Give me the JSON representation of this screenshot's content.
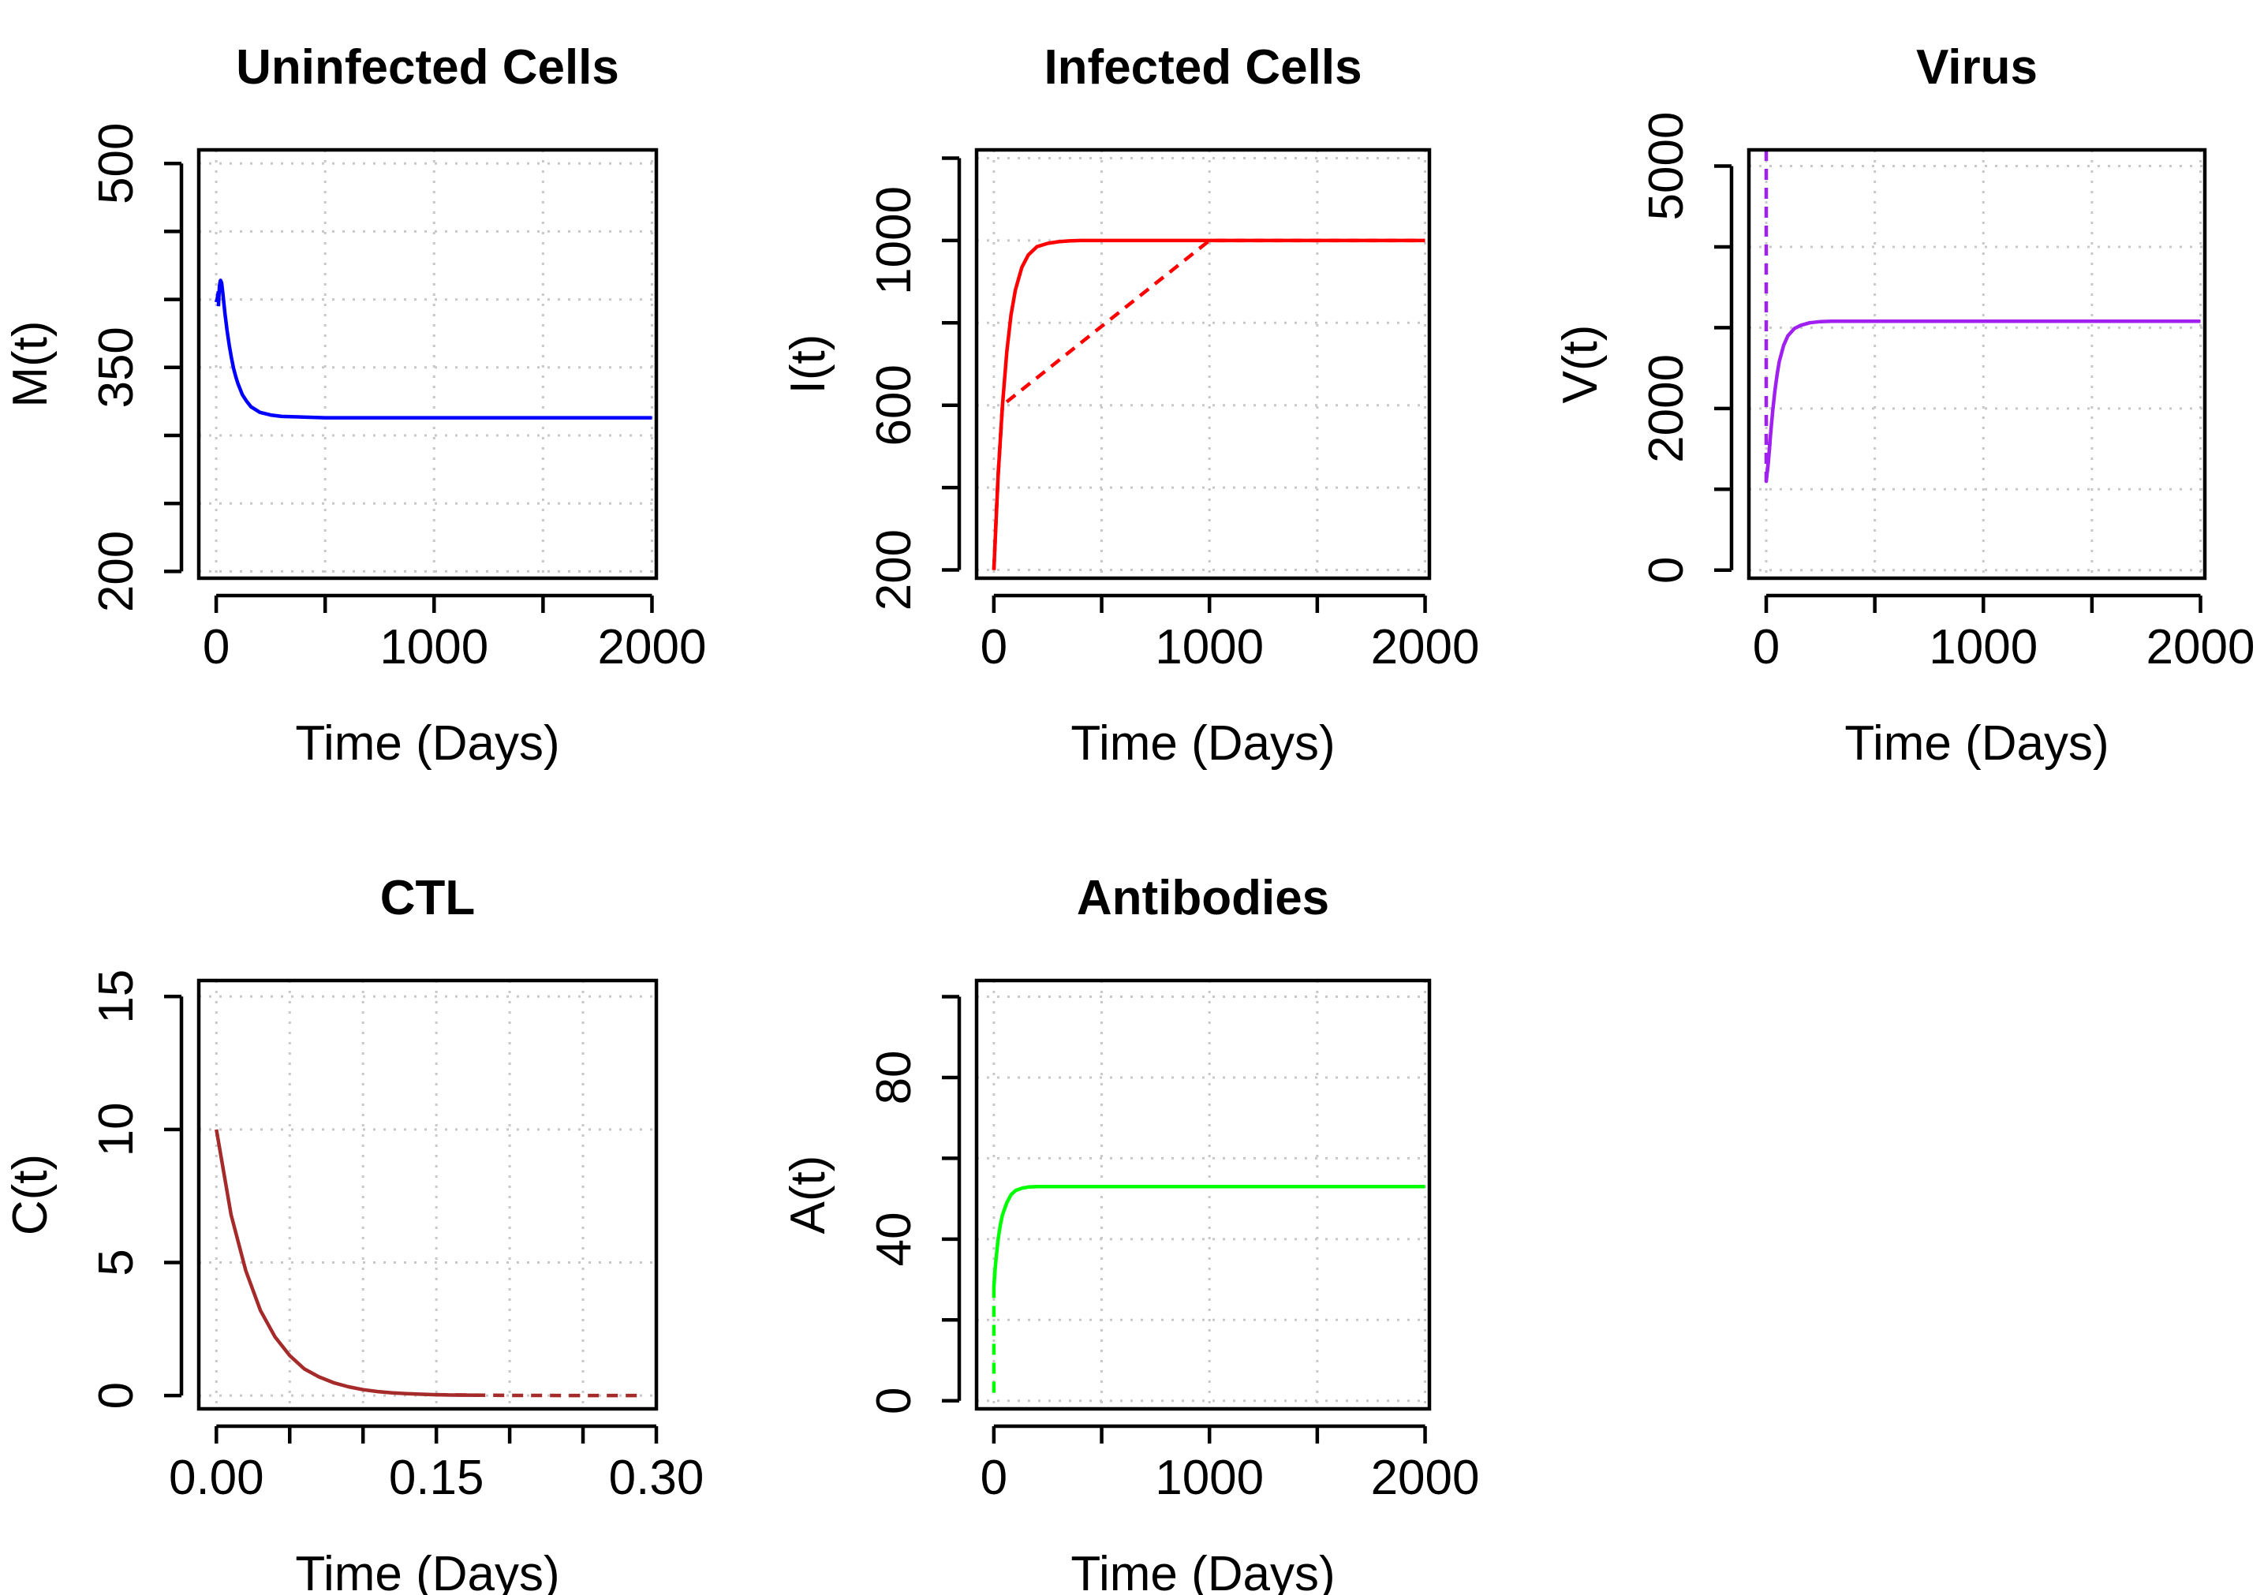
{
  "figure": {
    "layout": "2x3 grid of line plots"
  },
  "chart_data": [
    {
      "type": "line",
      "title": "Uninfected Cells",
      "xlabel": "Time (Days)",
      "ylabel": "M(t)",
      "xlim": [
        -80,
        2020
      ],
      "ylim": [
        195,
        510
      ],
      "xticks": [
        0,
        500,
        1000,
        1500,
        2000
      ],
      "xtick_labels": [
        "0",
        "",
        "1000",
        "",
        "2000"
      ],
      "yticks": [
        200,
        250,
        300,
        350,
        400,
        450,
        500
      ],
      "ytick_labels": [
        "200",
        "",
        "",
        "350",
        "",
        "",
        "500"
      ],
      "grid": true,
      "color": "#0000ff",
      "series": [
        {
          "name": "solid",
          "dash": "solid",
          "x": [
            10,
            15,
            20,
            25,
            30,
            40,
            50,
            60,
            70,
            80,
            90,
            100,
            120,
            140,
            160,
            180,
            200,
            250,
            300,
            400,
            500,
            700,
            1000,
            1500,
            2000
          ],
          "y": [
            395,
            410,
            414,
            412,
            405,
            390,
            377,
            366,
            357,
            349,
            343,
            338,
            330,
            325,
            321,
            319,
            317,
            315,
            314,
            313.5,
            313,
            313,
            313,
            313,
            313
          ]
        },
        {
          "name": "dashed",
          "dash": "dashed",
          "x": [
            0,
            5,
            10,
            15,
            20,
            25
          ],
          "y": [
            398,
            401,
            406,
            411,
            414,
            412
          ]
        }
      ]
    },
    {
      "type": "line",
      "title": "Infected Cells",
      "xlabel": "Time (Days)",
      "ylabel": "I(t)",
      "xlim": [
        -80,
        2020
      ],
      "ylim": [
        180,
        1220
      ],
      "xticks": [
        0,
        500,
        1000,
        1500,
        2000
      ],
      "xtick_labels": [
        "0",
        "",
        "1000",
        "",
        "2000"
      ],
      "yticks": [
        200,
        400,
        600,
        800,
        1000,
        1200
      ],
      "ytick_labels": [
        "200",
        "",
        "600",
        "",
        "1000",
        ""
      ],
      "grid": true,
      "color": "#ff0000",
      "series": [
        {
          "name": "solid",
          "dash": "solid",
          "x": [
            0,
            20,
            40,
            60,
            80,
            100,
            130,
            160,
            200,
            250,
            300,
            350,
            400,
            500,
            700,
            1000,
            1500,
            2000
          ],
          "y": [
            200,
            430,
            600,
            730,
            820,
            880,
            935,
            965,
            985,
            993,
            997,
            999,
            1000,
            1000,
            1000,
            1000,
            1000,
            1000
          ]
        },
        {
          "name": "dashed",
          "dash": "dashed",
          "x": [
            0,
            10,
            20,
            40,
            1000,
            1500,
            2000
          ],
          "y": [
            200,
            320,
            430,
            600,
            1000,
            1000,
            1000
          ]
        }
      ]
    },
    {
      "type": "line",
      "title": "Virus",
      "xlabel": "Time (Days)",
      "ylabel": "V(t)",
      "xlim": [
        -80,
        2020
      ],
      "ylim": [
        -100,
        5200
      ],
      "xticks": [
        0,
        500,
        1000,
        1500,
        2000
      ],
      "xtick_labels": [
        "0",
        "",
        "1000",
        "",
        "2000"
      ],
      "yticks": [
        0,
        1000,
        2000,
        3000,
        4000,
        5000
      ],
      "ytick_labels": [
        "0",
        "",
        "2000",
        "",
        "",
        "5000"
      ],
      "grid": true,
      "color": "#a020f0",
      "series": [
        {
          "name": "solid",
          "dash": "solid",
          "x": [
            0,
            10,
            20,
            30,
            40,
            50,
            60,
            80,
            100,
            130,
            160,
            200,
            250,
            300,
            400,
            500,
            700,
            1000,
            1500,
            2000
          ],
          "y": [
            1100,
            1350,
            1680,
            1980,
            2220,
            2420,
            2580,
            2780,
            2900,
            2990,
            3030,
            3060,
            3075,
            3080,
            3080,
            3080,
            3080,
            3080,
            3080,
            3080
          ]
        },
        {
          "name": "dashed",
          "dash": "dashed",
          "x": [
            0,
            0,
            0,
            10,
            20
          ],
          "y": [
            5200,
            3000,
            1100,
            1350,
            1680
          ]
        }
      ]
    },
    {
      "type": "line",
      "title": "CTL",
      "xlabel": "Time (Days)",
      "ylabel": "C(t)",
      "xlim": [
        -0.012,
        0.3
      ],
      "ylim": [
        -0.5,
        15.6
      ],
      "xticks": [
        0,
        0.05,
        0.1,
        0.15,
        0.2,
        0.25,
        0.3
      ],
      "xtick_labels": [
        "0.00",
        "",
        "",
        "0.15",
        "",
        "",
        "0.30"
      ],
      "yticks": [
        0,
        5,
        10,
        15
      ],
      "ytick_labels": [
        "0",
        "5",
        "10",
        "15"
      ],
      "grid": true,
      "color": "#a52a2a",
      "series": [
        {
          "name": "solid",
          "dash": "solid",
          "x": [
            0,
            0.01,
            0.02,
            0.03,
            0.04,
            0.05,
            0.06,
            0.07,
            0.08,
            0.09,
            0.1,
            0.11,
            0.12,
            0.13,
            0.14,
            0.15,
            0.16,
            0.17,
            0.18
          ],
          "y": [
            10,
            6.8,
            4.7,
            3.2,
            2.2,
            1.5,
            1.0,
            0.7,
            0.48,
            0.33,
            0.22,
            0.15,
            0.1,
            0.07,
            0.05,
            0.03,
            0.02,
            0.015,
            0.01
          ]
        },
        {
          "name": "dashed",
          "dash": "dashed",
          "x": [
            0.15,
            0.2,
            0.25,
            0.29
          ],
          "y": [
            0.03,
            0.005,
            0.0,
            0.0
          ]
        }
      ]
    },
    {
      "type": "line",
      "title": "Antibodies",
      "xlabel": "Time (Days)",
      "ylabel": "A(t)",
      "xlim": [
        -80,
        2020
      ],
      "ylim": [
        -2,
        104
      ],
      "xticks": [
        0,
        500,
        1000,
        1500,
        2000
      ],
      "xtick_labels": [
        "0",
        "",
        "1000",
        "",
        "2000"
      ],
      "yticks": [
        0,
        20,
        40,
        60,
        80,
        100
      ],
      "ytick_labels": [
        "0",
        "",
        "40",
        "",
        "80",
        ""
      ],
      "grid": true,
      "color": "#00ff00",
      "series": [
        {
          "name": "solid",
          "dash": "solid",
          "x": [
            0,
            5,
            10,
            20,
            30,
            40,
            60,
            80,
            100,
            130,
            160,
            200,
            250,
            300,
            400,
            500,
            700,
            1000,
            1500,
            2000
          ],
          "y": [
            28,
            32,
            35,
            40,
            43.5,
            46,
            49,
            51,
            52,
            52.6,
            52.9,
            53,
            53,
            53,
            53,
            53,
            53,
            53,
            53,
            53
          ]
        },
        {
          "name": "dashed",
          "dash": "dashed",
          "x": [
            0,
            0,
            0,
            5
          ],
          "y": [
            2,
            15,
            28,
            32
          ]
        }
      ]
    }
  ]
}
